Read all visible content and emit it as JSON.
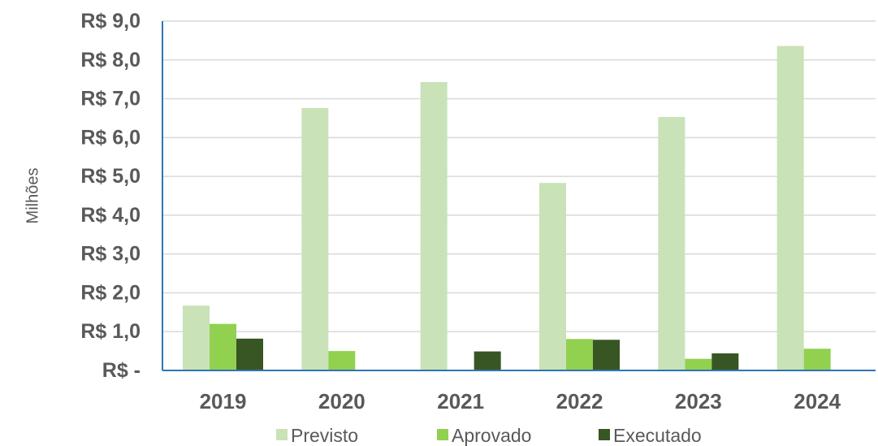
{
  "chart_data": {
    "type": "bar",
    "title": "",
    "xlabel": "",
    "ylabel": "Milhões",
    "categories": [
      "2019",
      "2020",
      "2021",
      "2022",
      "2023",
      "2024"
    ],
    "ylim": [
      0,
      9
    ],
    "yticks": [
      {
        "value": 0,
        "label": "R$ -"
      },
      {
        "value": 1,
        "label": "R$ 1,0"
      },
      {
        "value": 2,
        "label": "R$ 2,0"
      },
      {
        "value": 3,
        "label": "R$ 3,0"
      },
      {
        "value": 4,
        "label": "R$ 4,0"
      },
      {
        "value": 5,
        "label": "R$ 5,0"
      },
      {
        "value": 6,
        "label": "R$ 6,0"
      },
      {
        "value": 7,
        "label": "R$ 7,0"
      },
      {
        "value": 8,
        "label": "R$ 8,0"
      },
      {
        "value": 9,
        "label": "R$ 9,0"
      }
    ],
    "grid": true,
    "legend_position": "bottom",
    "series": [
      {
        "name": "Previsto",
        "color": "#c9e2b8",
        "values": [
          1.67,
          6.76,
          7.43,
          4.83,
          6.53,
          8.36
        ]
      },
      {
        "name": "Aprovado",
        "color": "#92d050",
        "values": [
          1.2,
          0.5,
          0,
          0.81,
          0.3,
          0.56
        ]
      },
      {
        "name": "Executado",
        "color": "#375623",
        "values": [
          0.82,
          0.01,
          0.49,
          0.79,
          0.44,
          0
        ]
      }
    ]
  }
}
